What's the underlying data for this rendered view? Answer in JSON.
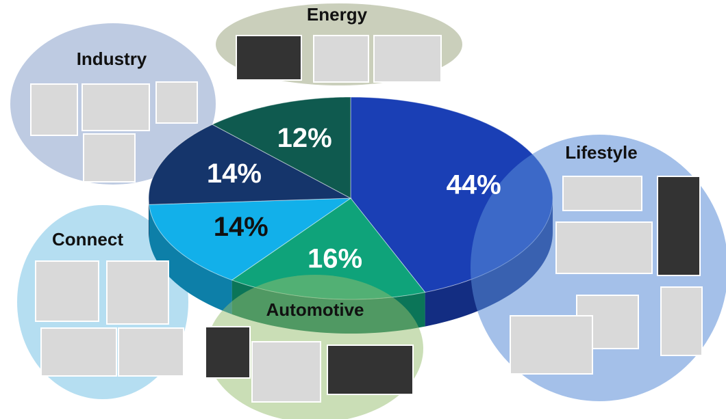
{
  "chart_data": {
    "type": "pie",
    "categories": [
      "Lifestyle",
      "Automotive",
      "Connect",
      "Industry",
      "Energy"
    ],
    "values": [
      44,
      16,
      14,
      14,
      12
    ],
    "value_labels": [
      "44%",
      "16%",
      "14%",
      "14%",
      "12%"
    ],
    "colors": [
      "#1a3fb5",
      "#0fa37a",
      "#12b0ea",
      "#15356b",
      "#0f5a4f"
    ]
  }
}
